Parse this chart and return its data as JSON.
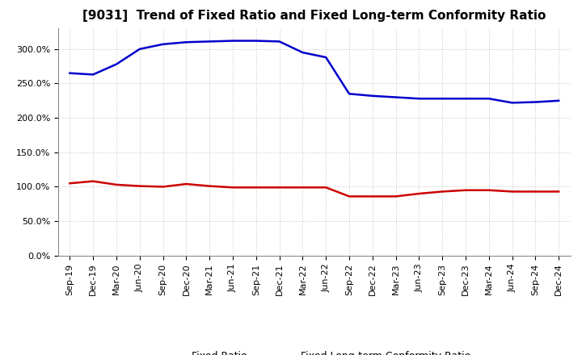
{
  "title": "[9031]  Trend of Fixed Ratio and Fixed Long-term Conformity Ratio",
  "x_labels": [
    "Sep-19",
    "Dec-19",
    "Mar-20",
    "Jun-20",
    "Sep-20",
    "Dec-20",
    "Mar-21",
    "Jun-21",
    "Sep-21",
    "Dec-21",
    "Mar-22",
    "Jun-22",
    "Sep-22",
    "Dec-22",
    "Mar-23",
    "Jun-23",
    "Sep-23",
    "Dec-23",
    "Mar-24",
    "Jun-24",
    "Sep-24",
    "Dec-24"
  ],
  "fixed_ratio": [
    265,
    263,
    278,
    300,
    307,
    310,
    311,
    312,
    312,
    311,
    295,
    288,
    235,
    232,
    230,
    228,
    228,
    228,
    228,
    222,
    223,
    225
  ],
  "fixed_lt_ratio": [
    105,
    108,
    103,
    101,
    100,
    104,
    101,
    99,
    99,
    99,
    99,
    99,
    86,
    86,
    86,
    90,
    93,
    95,
    95,
    93,
    93,
    93
  ],
  "fixed_ratio_color": "#0000CC",
  "fixed_lt_ratio_color": "#CC0000",
  "background_color": "#FFFFFF",
  "grid_color": "#BBBBBB",
  "ylim": [
    0,
    330
  ],
  "yticks": [
    0,
    50,
    100,
    150,
    200,
    250,
    300
  ],
  "legend_fixed_ratio": "Fixed Ratio",
  "legend_fixed_lt_ratio": "Fixed Long-term Conformity Ratio",
  "title_fontsize": 11,
  "tick_fontsize": 8,
  "legend_fontsize": 9
}
